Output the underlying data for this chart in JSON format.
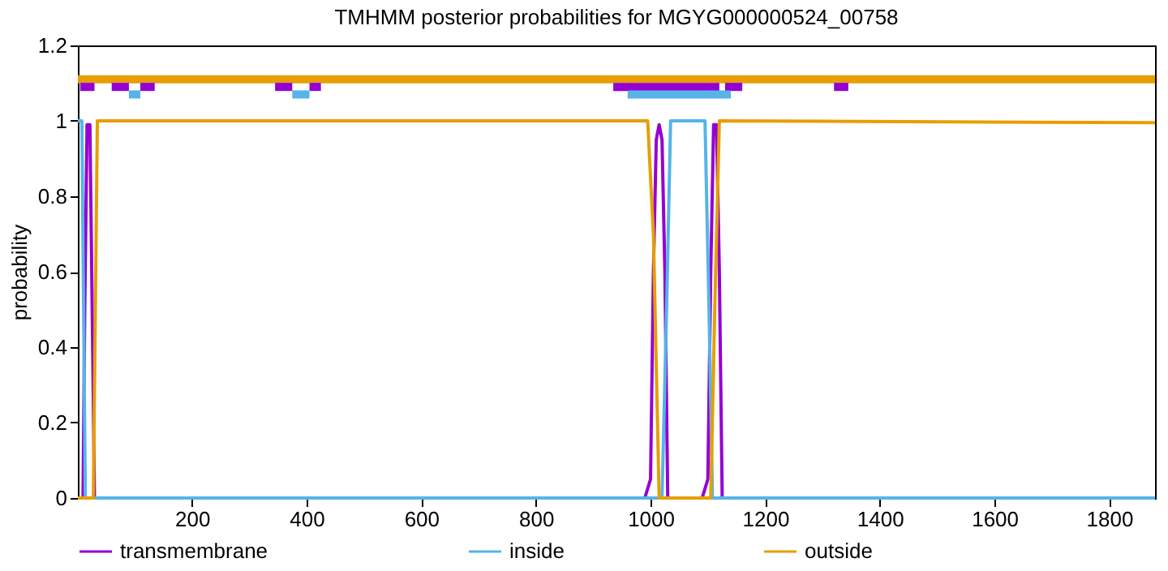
{
  "chart_data": {
    "type": "line",
    "title": "TMHMM posterior probabilities for MGYG000000524_00758",
    "ylabel": "probability",
    "xlim": [
      1,
      1880
    ],
    "xticks": [
      200,
      400,
      600,
      800,
      1000,
      1200,
      1400,
      1600,
      1800
    ],
    "ylim": [
      0,
      1.2
    ],
    "yticks": [
      0,
      0.2,
      0.4,
      0.6,
      0.8,
      1,
      1.2
    ],
    "grid": false,
    "legend": "bottom",
    "line_style": "solid",
    "marker": "none",
    "series": [
      {
        "name": "transmembrane",
        "color": "#9400d3",
        "x": [
          1,
          10,
          13,
          17,
          22,
          26,
          30,
          990,
          1000,
          1005,
          1010,
          1015,
          1020,
          1025,
          1030,
          1090,
          1100,
          1105,
          1110,
          1115,
          1120,
          1125,
          1880
        ],
        "values": [
          0,
          0,
          0.5,
          0.99,
          0.99,
          0.5,
          0,
          0,
          0.05,
          0.6,
          0.95,
          0.99,
          0.95,
          0.6,
          0,
          0,
          0.05,
          0.6,
          0.99,
          0.99,
          0.6,
          0,
          0
        ]
      },
      {
        "name": "inside",
        "color": "#56b4e9",
        "x": [
          1,
          8,
          14,
          1020,
          1028,
          1035,
          1095,
          1102,
          1108,
          1880
        ],
        "values": [
          1,
          1,
          0,
          0,
          0.5,
          1,
          1,
          0.5,
          0,
          0
        ]
      },
      {
        "name": "outside",
        "color": "#e69f00",
        "x": [
          1,
          28,
          35,
          995,
          1005,
          1015,
          1105,
          1112,
          1120,
          1880
        ],
        "values": [
          0,
          0,
          1,
          1,
          0.7,
          0,
          0,
          0.5,
          1,
          0.995
        ]
      },
      {
        "color": "#e69f00",
        "x": [
          1,
          1880
        ],
        "values": [
          1.11,
          1.11
        ]
      },
      {
        "color": "#9400d3",
        "x": [
          5,
          30
        ],
        "values": [
          1.09,
          1.09
        ]
      },
      {
        "color": "#9400d3",
        "x": [
          60,
          90
        ],
        "values": [
          1.09,
          1.09
        ]
      },
      {
        "color": "#9400d3",
        "x": [
          110,
          135
        ],
        "values": [
          1.09,
          1.09
        ]
      },
      {
        "color": "#9400d3",
        "x": [
          345,
          375
        ],
        "values": [
          1.09,
          1.09
        ]
      },
      {
        "color": "#9400d3",
        "x": [
          405,
          425
        ],
        "values": [
          1.09,
          1.09
        ]
      },
      {
        "color": "#9400d3",
        "x": [
          935,
          1120
        ],
        "values": [
          1.09,
          1.09
        ]
      },
      {
        "color": "#9400d3",
        "x": [
          1130,
          1160
        ],
        "values": [
          1.09,
          1.09
        ]
      },
      {
        "color": "#9400d3",
        "x": [
          1320,
          1345
        ],
        "values": [
          1.09,
          1.09
        ]
      },
      {
        "color": "#56b4e9",
        "x": [
          90,
          110
        ],
        "values": [
          1.07,
          1.07
        ]
      },
      {
        "color": "#56b4e9",
        "x": [
          375,
          405
        ],
        "values": [
          1.07,
          1.07
        ]
      },
      {
        "color": "#56b4e9",
        "x": [
          960,
          1140
        ],
        "values": [
          1.07,
          1.07
        ]
      }
    ]
  }
}
